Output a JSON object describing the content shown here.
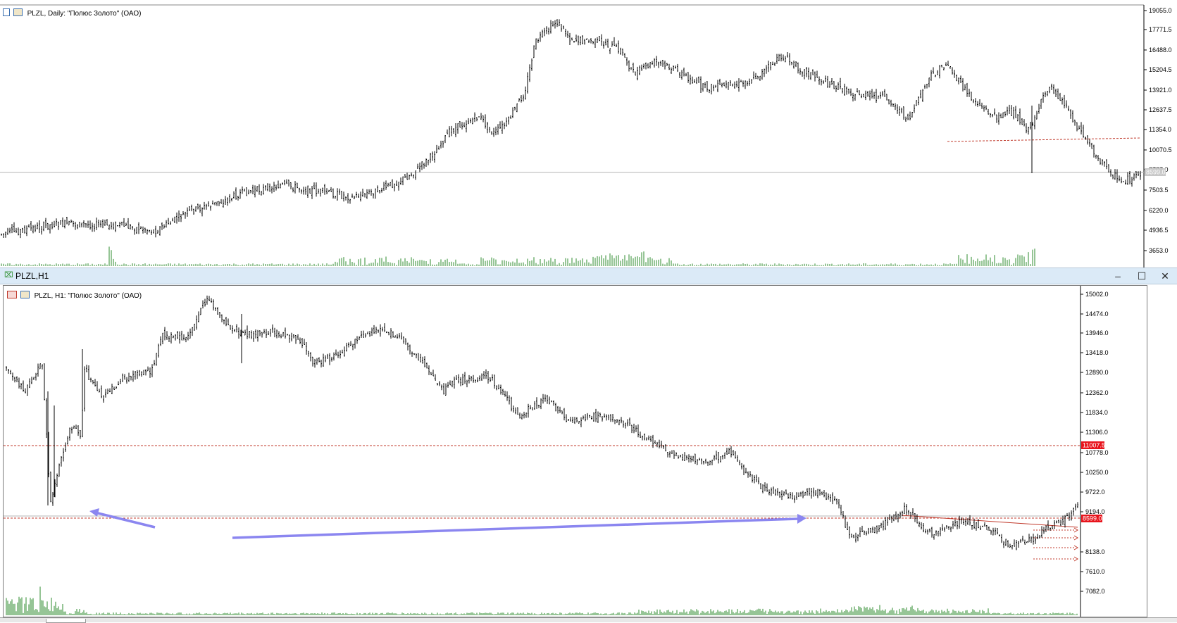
{
  "daily": {
    "title": "PLZL, Daily:  \"Полюс Золото\" (ОАО)",
    "axis_labels": [
      "19055.0",
      "17771.5",
      "16488.0",
      "15204.5",
      "13921.0",
      "12637.5",
      "11354.0",
      "10070.5",
      "8787.0",
      "7503.5",
      "6220.0",
      "4936.5",
      "3653.0"
    ],
    "current_price": "8599.0"
  },
  "window": {
    "title": "PLZL,H1",
    "minimize": "–",
    "maximize": "☐",
    "close": "✕"
  },
  "h1": {
    "title": "PLZL, H1:  \"Полюс Золото\" (ОАО)",
    "axis_labels": [
      "15002.0",
      "14474.0",
      "13946.0",
      "13418.0",
      "12890.0",
      "12362.0",
      "11834.0",
      "11306.0",
      "10778.0",
      "10250.0",
      "9722.0",
      "9194.0",
      "8138.0",
      "7610.0",
      "7082.0"
    ],
    "level_tag_upper": "11007.5",
    "level_tag_lower": "8599.0"
  },
  "colors": {
    "bars": "#000000",
    "volume": "#2e8b2e",
    "level_line": "#c0392b",
    "tag_bg": "#e8141c",
    "arrow": "#8b86f0",
    "titlebar": "#dbeaf7"
  }
}
